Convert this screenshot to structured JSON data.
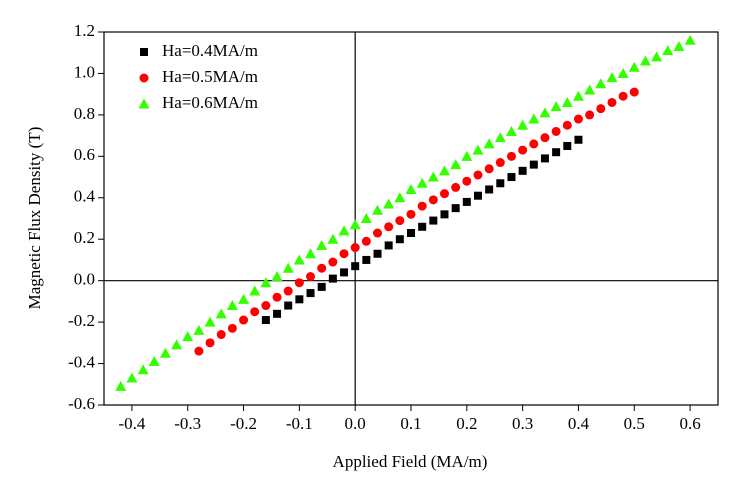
{
  "chart_data": {
    "type": "scatter",
    "xlabel": "Applied Field (MA/m)",
    "ylabel": "Magnetic Flux Density (T)",
    "xlim": [
      -0.45,
      0.65
    ],
    "ylim": [
      -0.6,
      1.2
    ],
    "xticks": [
      -0.4,
      -0.3,
      -0.2,
      -0.1,
      {
        "value": 0,
        "label": "0.0"
      },
      0.1,
      0.2,
      0.3,
      0.4,
      0.5,
      0.6
    ],
    "yticks": [
      -0.6,
      -0.4,
      -0.2,
      {
        "value": 0,
        "label": "0.0"
      },
      0.2,
      0.4,
      0.6,
      0.8,
      {
        "value": 1,
        "label": "1.0"
      },
      1.2
    ],
    "zero_lines": true,
    "legend": "upper left",
    "series": [
      {
        "name": "Ha=0.4MA/m",
        "color": "#000000",
        "marker": "square",
        "x": [
          -0.16,
          -0.14,
          -0.12,
          -0.1,
          -0.08,
          -0.06,
          -0.04,
          -0.02,
          0,
          0.02,
          0.04,
          0.06,
          0.08,
          0.1,
          0.12,
          0.14,
          0.16,
          0.18,
          0.2,
          0.22,
          0.24,
          0.26,
          0.28,
          0.3,
          0.32,
          0.34,
          0.36,
          0.38,
          0.4
        ],
        "values": [
          -0.19,
          -0.16,
          -0.12,
          -0.09,
          -0.06,
          -0.03,
          0.01,
          0.04,
          0.07,
          0.1,
          0.13,
          0.17,
          0.2,
          0.23,
          0.26,
          0.29,
          0.32,
          0.35,
          0.38,
          0.41,
          0.44,
          0.47,
          0.5,
          0.53,
          0.56,
          0.59,
          0.62,
          0.65,
          0.68
        ]
      },
      {
        "name": "Ha=0.5MA/m",
        "color": "#ff0000",
        "marker": "circle",
        "x": [
          -0.28,
          -0.26,
          -0.24,
          -0.22,
          -0.2,
          -0.18,
          -0.16,
          -0.14,
          -0.12,
          -0.1,
          -0.08,
          -0.06,
          -0.04,
          -0.02,
          0,
          0.02,
          0.04,
          0.06,
          0.08,
          0.1,
          0.12,
          0.14,
          0.16,
          0.18,
          0.2,
          0.22,
          0.24,
          0.26,
          0.28,
          0.3,
          0.32,
          0.34,
          0.36,
          0.38,
          0.4,
          0.42,
          0.44,
          0.46,
          0.48,
          0.5
        ],
        "values": [
          -0.34,
          -0.3,
          -0.26,
          -0.23,
          -0.19,
          -0.15,
          -0.12,
          -0.08,
          -0.05,
          -0.01,
          0.02,
          0.06,
          0.09,
          0.13,
          0.16,
          0.19,
          0.23,
          0.26,
          0.29,
          0.32,
          0.36,
          0.39,
          0.42,
          0.45,
          0.48,
          0.51,
          0.54,
          0.57,
          0.6,
          0.63,
          0.66,
          0.69,
          0.72,
          0.75,
          0.78,
          0.8,
          0.83,
          0.86,
          0.89,
          0.91
        ]
      },
      {
        "name": "Ha=0.6MA/m",
        "color": "#33ff00",
        "marker": "triangle",
        "x": [
          -0.42,
          -0.4,
          -0.38,
          -0.36,
          -0.34,
          -0.32,
          -0.3,
          -0.28,
          -0.26,
          -0.24,
          -0.22,
          -0.2,
          -0.18,
          -0.16,
          -0.14,
          -0.12,
          -0.1,
          -0.08,
          -0.06,
          -0.04,
          -0.02,
          0,
          0.02,
          0.04,
          0.06,
          0.08,
          0.1,
          0.12,
          0.14,
          0.16,
          0.18,
          0.2,
          0.22,
          0.24,
          0.26,
          0.28,
          0.3,
          0.32,
          0.34,
          0.36,
          0.38,
          0.4,
          0.42,
          0.44,
          0.46,
          0.48,
          0.5,
          0.52,
          0.54,
          0.56,
          0.58,
          0.6
        ],
        "values": [
          -0.51,
          -0.47,
          -0.43,
          -0.39,
          -0.35,
          -0.31,
          -0.27,
          -0.24,
          -0.2,
          -0.16,
          -0.12,
          -0.09,
          -0.05,
          -0.01,
          0.02,
          0.06,
          0.1,
          0.13,
          0.17,
          0.2,
          0.24,
          0.27,
          0.3,
          0.34,
          0.37,
          0.4,
          0.44,
          0.47,
          0.5,
          0.53,
          0.56,
          0.6,
          0.63,
          0.66,
          0.69,
          0.72,
          0.75,
          0.78,
          0.81,
          0.84,
          0.86,
          0.89,
          0.92,
          0.95,
          0.98,
          1.0,
          1.03,
          1.06,
          1.08,
          1.11,
          1.13,
          1.16
        ]
      }
    ]
  }
}
